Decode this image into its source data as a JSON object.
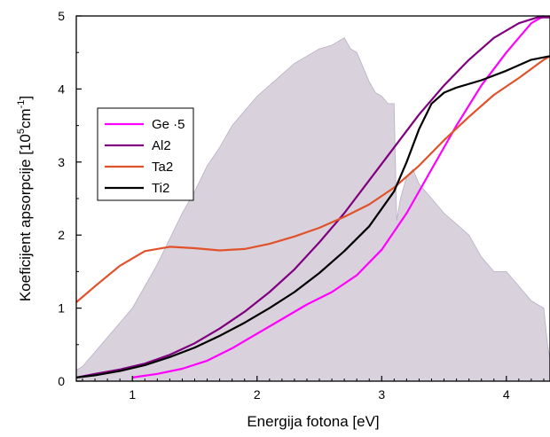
{
  "chart_data": {
    "type": "line",
    "xlabel": "Energija fotona [eV]",
    "ylabel_main": "Koeficijent apsorpcije [10",
    "ylabel_sup1": "5",
    "ylabel_mid": "cm",
    "ylabel_sup2": "-1",
    "ylabel_end": "]",
    "xlim": [
      0.55,
      4.35
    ],
    "ylim": [
      0,
      5
    ],
    "xticks": [
      1,
      2,
      3,
      4
    ],
    "yticks": [
      0,
      1,
      2,
      3,
      4,
      5
    ],
    "legend_position": "upper-left",
    "background_spectrum": {
      "color": "#d9d1dc",
      "line_color": "#b8b0c4",
      "x": [
        0.55,
        0.6,
        0.7,
        0.8,
        0.9,
        1.0,
        1.1,
        1.2,
        1.3,
        1.4,
        1.5,
        1.6,
        1.7,
        1.8,
        1.9,
        2.0,
        2.1,
        2.2,
        2.3,
        2.4,
        2.5,
        2.6,
        2.65,
        2.7,
        2.75,
        2.8,
        2.85,
        2.9,
        2.95,
        3.0,
        3.05,
        3.1,
        3.12,
        3.15,
        3.2,
        3.25,
        3.3,
        3.4,
        3.5,
        3.6,
        3.7,
        3.8,
        3.9,
        4.0,
        4.1,
        4.2,
        4.3,
        4.33,
        4.35
      ],
      "y": [
        0.15,
        0.2,
        0.4,
        0.6,
        0.8,
        1.0,
        1.3,
        1.6,
        1.95,
        2.3,
        2.6,
        2.95,
        3.2,
        3.5,
        3.7,
        3.9,
        4.05,
        4.2,
        4.35,
        4.45,
        4.55,
        4.6,
        4.65,
        4.7,
        4.55,
        4.5,
        4.3,
        4.1,
        3.95,
        3.9,
        3.8,
        3.8,
        2.2,
        2.5,
        2.8,
        2.9,
        2.7,
        2.5,
        2.3,
        2.15,
        2.0,
        1.7,
        1.5,
        1.5,
        1.3,
        1.1,
        1.0,
        0.5,
        0.3
      ]
    },
    "series": [
      {
        "name": "Ge ·5",
        "color": "#ff00ff",
        "x": [
          1.0,
          1.2,
          1.4,
          1.6,
          1.8,
          2.0,
          2.2,
          2.4,
          2.6,
          2.8,
          3.0,
          3.2,
          3.4,
          3.6,
          3.8,
          4.0,
          4.2,
          4.3
        ],
        "y": [
          0.05,
          0.1,
          0.17,
          0.28,
          0.45,
          0.65,
          0.85,
          1.05,
          1.22,
          1.45,
          1.8,
          2.3,
          2.9,
          3.5,
          4.05,
          4.5,
          4.9,
          5.0
        ]
      },
      {
        "name": "Al2",
        "color": "#800080",
        "x": [
          0.55,
          0.7,
          0.9,
          1.1,
          1.3,
          1.5,
          1.7,
          1.9,
          2.1,
          2.3,
          2.5,
          2.7,
          2.9,
          3.1,
          3.3,
          3.5,
          3.7,
          3.9,
          4.1,
          4.25,
          4.35
        ],
        "y": [
          0.05,
          0.1,
          0.16,
          0.24,
          0.36,
          0.52,
          0.72,
          0.95,
          1.22,
          1.53,
          1.9,
          2.3,
          2.75,
          3.2,
          3.65,
          4.05,
          4.4,
          4.7,
          4.9,
          4.98,
          4.98
        ]
      },
      {
        "name": "Ta2",
        "color": "#e0522a",
        "x": [
          0.55,
          0.7,
          0.9,
          1.1,
          1.3,
          1.5,
          1.7,
          1.9,
          2.1,
          2.3,
          2.5,
          2.7,
          2.9,
          3.1,
          3.3,
          3.5,
          3.7,
          3.9,
          4.1,
          4.3,
          4.35
        ],
        "y": [
          1.08,
          1.3,
          1.58,
          1.78,
          1.84,
          1.82,
          1.79,
          1.81,
          1.88,
          1.98,
          2.1,
          2.25,
          2.42,
          2.65,
          2.95,
          3.3,
          3.62,
          3.92,
          4.15,
          4.4,
          4.45
        ]
      },
      {
        "name": "Ti2",
        "color": "#000000",
        "x": [
          0.55,
          0.7,
          0.9,
          1.1,
          1.3,
          1.5,
          1.7,
          1.9,
          2.1,
          2.3,
          2.5,
          2.7,
          2.9,
          3.1,
          3.2,
          3.3,
          3.4,
          3.5,
          3.6,
          3.8,
          4.0,
          4.2,
          4.35
        ],
        "y": [
          0.05,
          0.08,
          0.14,
          0.22,
          0.33,
          0.46,
          0.62,
          0.8,
          1.0,
          1.22,
          1.48,
          1.78,
          2.12,
          2.6,
          3.0,
          3.45,
          3.8,
          3.95,
          4.02,
          4.12,
          4.25,
          4.4,
          4.45
        ]
      }
    ]
  }
}
